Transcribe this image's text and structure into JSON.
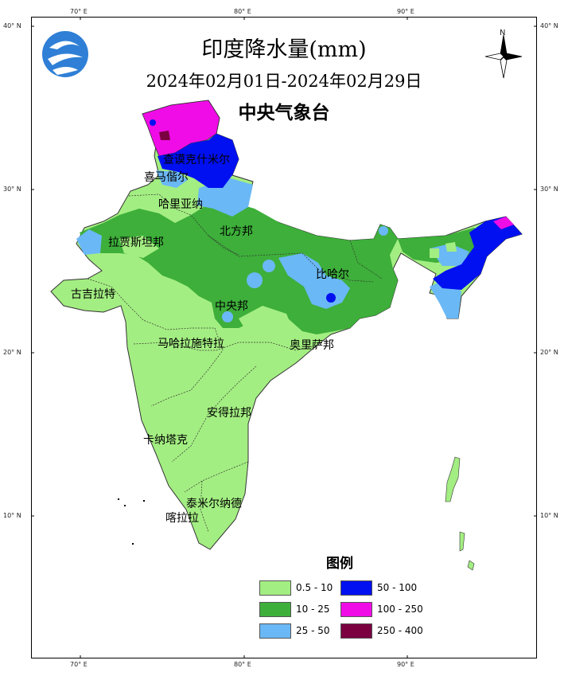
{
  "title": "印度降水量(mm)",
  "date_range": "2024年02月01日-2024年02月29日",
  "agency": "中央气象台",
  "legend": {
    "title": "图例",
    "items": [
      {
        "label": "0.5 - 10",
        "color": "#a3ee82"
      },
      {
        "label": "10  - 25",
        "color": "#3daf3a"
      },
      {
        "label": "25  - 50",
        "color": "#6ab8f5"
      },
      {
        "label": "50  - 100",
        "color": "#0010f0"
      },
      {
        "label": "100 - 250",
        "color": "#f00ce6"
      },
      {
        "label": "250 - 400",
        "color": "#7a0040"
      }
    ]
  },
  "axes": {
    "top": [
      "70° E",
      "80° E",
      "90° E"
    ],
    "bottom": [
      "70° E",
      "80° E",
      "90° E"
    ],
    "left": [
      "40° N",
      "30° N",
      "20° N",
      "10° N"
    ],
    "right": [
      "40° N",
      "30° N",
      "20° N",
      "10° N"
    ]
  },
  "north_label": "N",
  "regions": [
    "查谟克什米尔",
    "喜马偕尔",
    "哈里亚纳",
    "北方邦",
    "拉贾斯坦邦",
    "古吉拉特",
    "中央邦",
    "比哈尔",
    "马哈拉施特拉",
    "奥里萨邦",
    "安得拉邦",
    "卡纳塔克",
    "泰米尔纳德",
    "喀拉拉"
  ]
}
